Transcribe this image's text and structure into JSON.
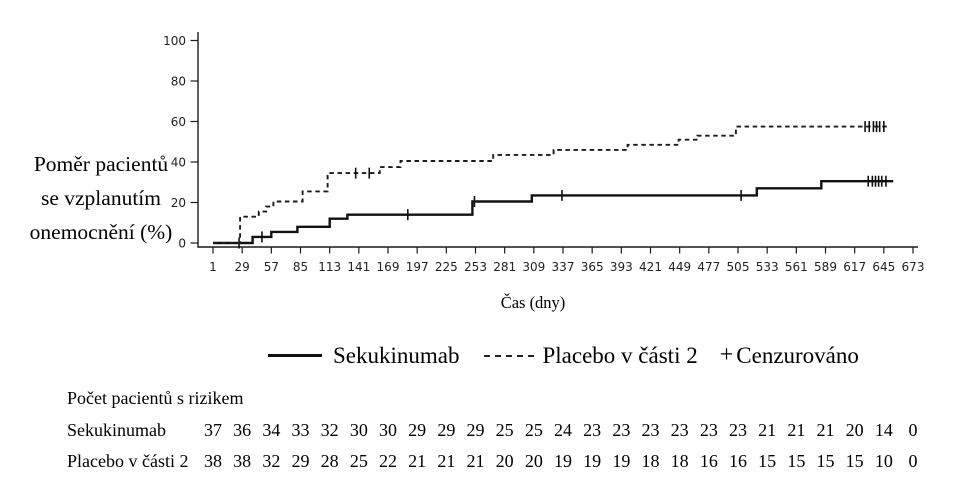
{
  "chart_data": {
    "type": "line",
    "subtype": "kaplan-meier-step",
    "title": "",
    "ylabel_lines": [
      "Poměr pacientů",
      "se vzplanutím",
      "onemocnění (%)"
    ],
    "xlabel": "Čas (dny)",
    "x_ticks": [
      1,
      29,
      57,
      85,
      113,
      141,
      169,
      197,
      225,
      253,
      281,
      309,
      337,
      365,
      393,
      421,
      449,
      477,
      505,
      533,
      561,
      589,
      617,
      645,
      673
    ],
    "y_ticks": [
      0,
      20,
      40,
      60,
      80,
      100
    ],
    "xlim": [
      1,
      673
    ],
    "ylim": [
      0,
      100
    ],
    "grid": false,
    "legend_position": "bottom",
    "series": [
      {
        "name": "Sekukinumab",
        "line_style": "solid",
        "steps": [
          [
            1,
            0
          ],
          [
            39,
            3
          ],
          [
            57,
            5.5
          ],
          [
            82,
            8
          ],
          [
            113,
            12
          ],
          [
            130,
            14
          ],
          [
            250,
            20.5
          ],
          [
            307,
            23.5
          ],
          [
            523,
            27
          ],
          [
            585,
            30.5
          ]
        ],
        "end_day": 654,
        "censors": [
          [
            26,
            0
          ],
          [
            48,
            3
          ],
          [
            188,
            14
          ],
          [
            252,
            20.5
          ],
          [
            336,
            23.5
          ],
          [
            508,
            23.5
          ],
          [
            630,
            30.5
          ],
          [
            634,
            30.5
          ],
          [
            637,
            30.5
          ],
          [
            640,
            30.5
          ],
          [
            643,
            30.5
          ],
          [
            647,
            30.5
          ]
        ]
      },
      {
        "name": "Placebo v části 2",
        "line_style": "dashed",
        "steps": [
          [
            1,
            0
          ],
          [
            27,
            13
          ],
          [
            45,
            15.5
          ],
          [
            52,
            18
          ],
          [
            59,
            20.5
          ],
          [
            87,
            25.5
          ],
          [
            111,
            34.5
          ],
          [
            161,
            37.5
          ],
          [
            181,
            40.5
          ],
          [
            270,
            43.5
          ],
          [
            328,
            46
          ],
          [
            399,
            48.5
          ],
          [
            448,
            51
          ],
          [
            466,
            53
          ],
          [
            503,
            57.5
          ]
        ],
        "end_day": 650,
        "censors": [
          [
            138,
            34.5
          ],
          [
            151,
            34.5
          ],
          [
            627,
            57.5
          ],
          [
            631,
            57.5
          ],
          [
            635,
            57.5
          ],
          [
            638,
            57.5
          ],
          [
            641,
            57.5
          ],
          [
            645,
            57.5
          ]
        ]
      }
    ],
    "colors": {
      "line": "#111111",
      "axis": "#1a1a1a",
      "text": "#000000"
    }
  },
  "legend": {
    "items": [
      {
        "label": "Sekukinumab",
        "style": "solid"
      },
      {
        "label": "Placebo v části 2",
        "style": "dashed"
      },
      {
        "label": "Cenzurováno",
        "style": "plus"
      }
    ],
    "censor_symbol": "+"
  },
  "risk_table": {
    "title": "Počet pacientů s rizikem",
    "rows": [
      {
        "label": "Sekukinumab",
        "values": [
          37,
          36,
          34,
          33,
          32,
          30,
          30,
          29,
          29,
          29,
          25,
          25,
          24,
          23,
          23,
          23,
          23,
          23,
          23,
          21,
          21,
          21,
          20,
          14,
          0
        ]
      },
      {
        "label": "Placebo v části 2",
        "values": [
          38,
          38,
          32,
          29,
          28,
          25,
          22,
          21,
          21,
          21,
          20,
          20,
          19,
          19,
          19,
          18,
          18,
          16,
          16,
          15,
          15,
          15,
          15,
          10,
          0
        ]
      }
    ]
  }
}
